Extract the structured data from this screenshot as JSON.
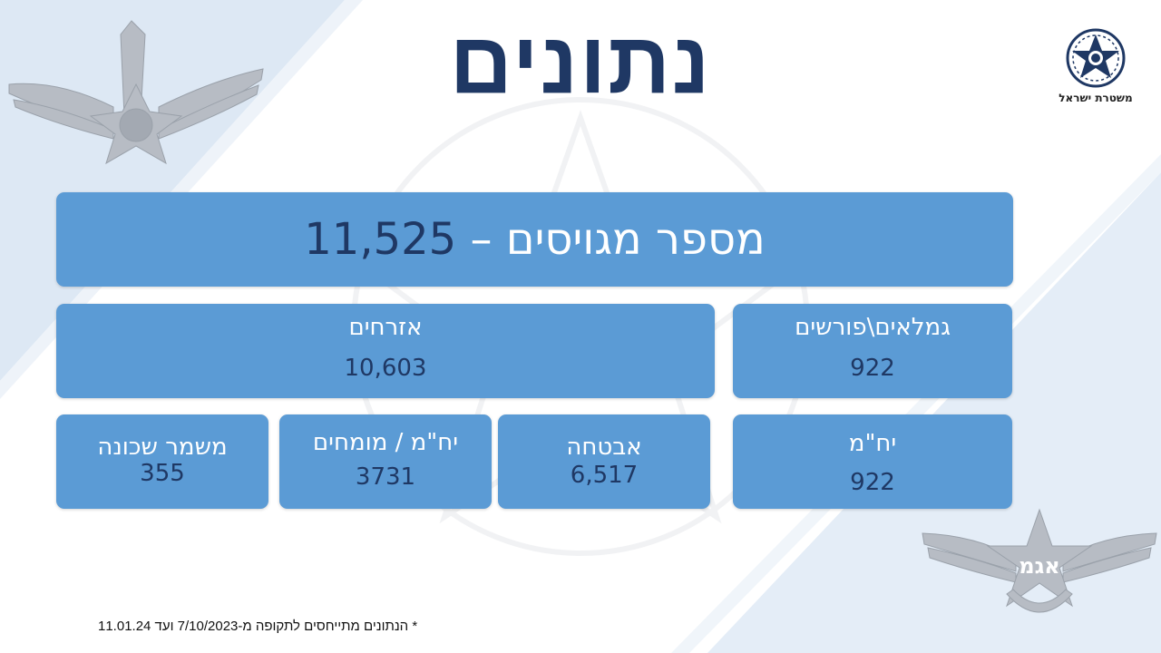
{
  "slide": {
    "title": "נתונים",
    "headline_label": "מספר מגויסים –",
    "headline_value": "11,525",
    "logo_caption": "משטרת ישראל",
    "footnote": "* הנתונים מתייחסים לתקופה מ-7/10/2023 ועד 11.01.24"
  },
  "groups": [
    {
      "label": "גמלאים\\פורשים",
      "value": "922"
    },
    {
      "label": "אזרחים",
      "value": "10,603"
    }
  ],
  "sub_boxes": [
    {
      "label": "יח\"מ",
      "value": "922"
    },
    {
      "label": "אבטחה",
      "value": "6,517"
    },
    {
      "label": "יח\"מ / מומחים",
      "value": "3731"
    },
    {
      "label": "משמר שכונה",
      "value": "355"
    }
  ],
  "icons": {
    "top_left_emblem": "police-wings-emblem",
    "top_right_logo": "israel-police-star-logo",
    "bottom_right_emblem": "agam-wings-emblem"
  },
  "colors": {
    "box": "#5b9bd5",
    "title": "#1f3864",
    "value": "#1f3864"
  }
}
